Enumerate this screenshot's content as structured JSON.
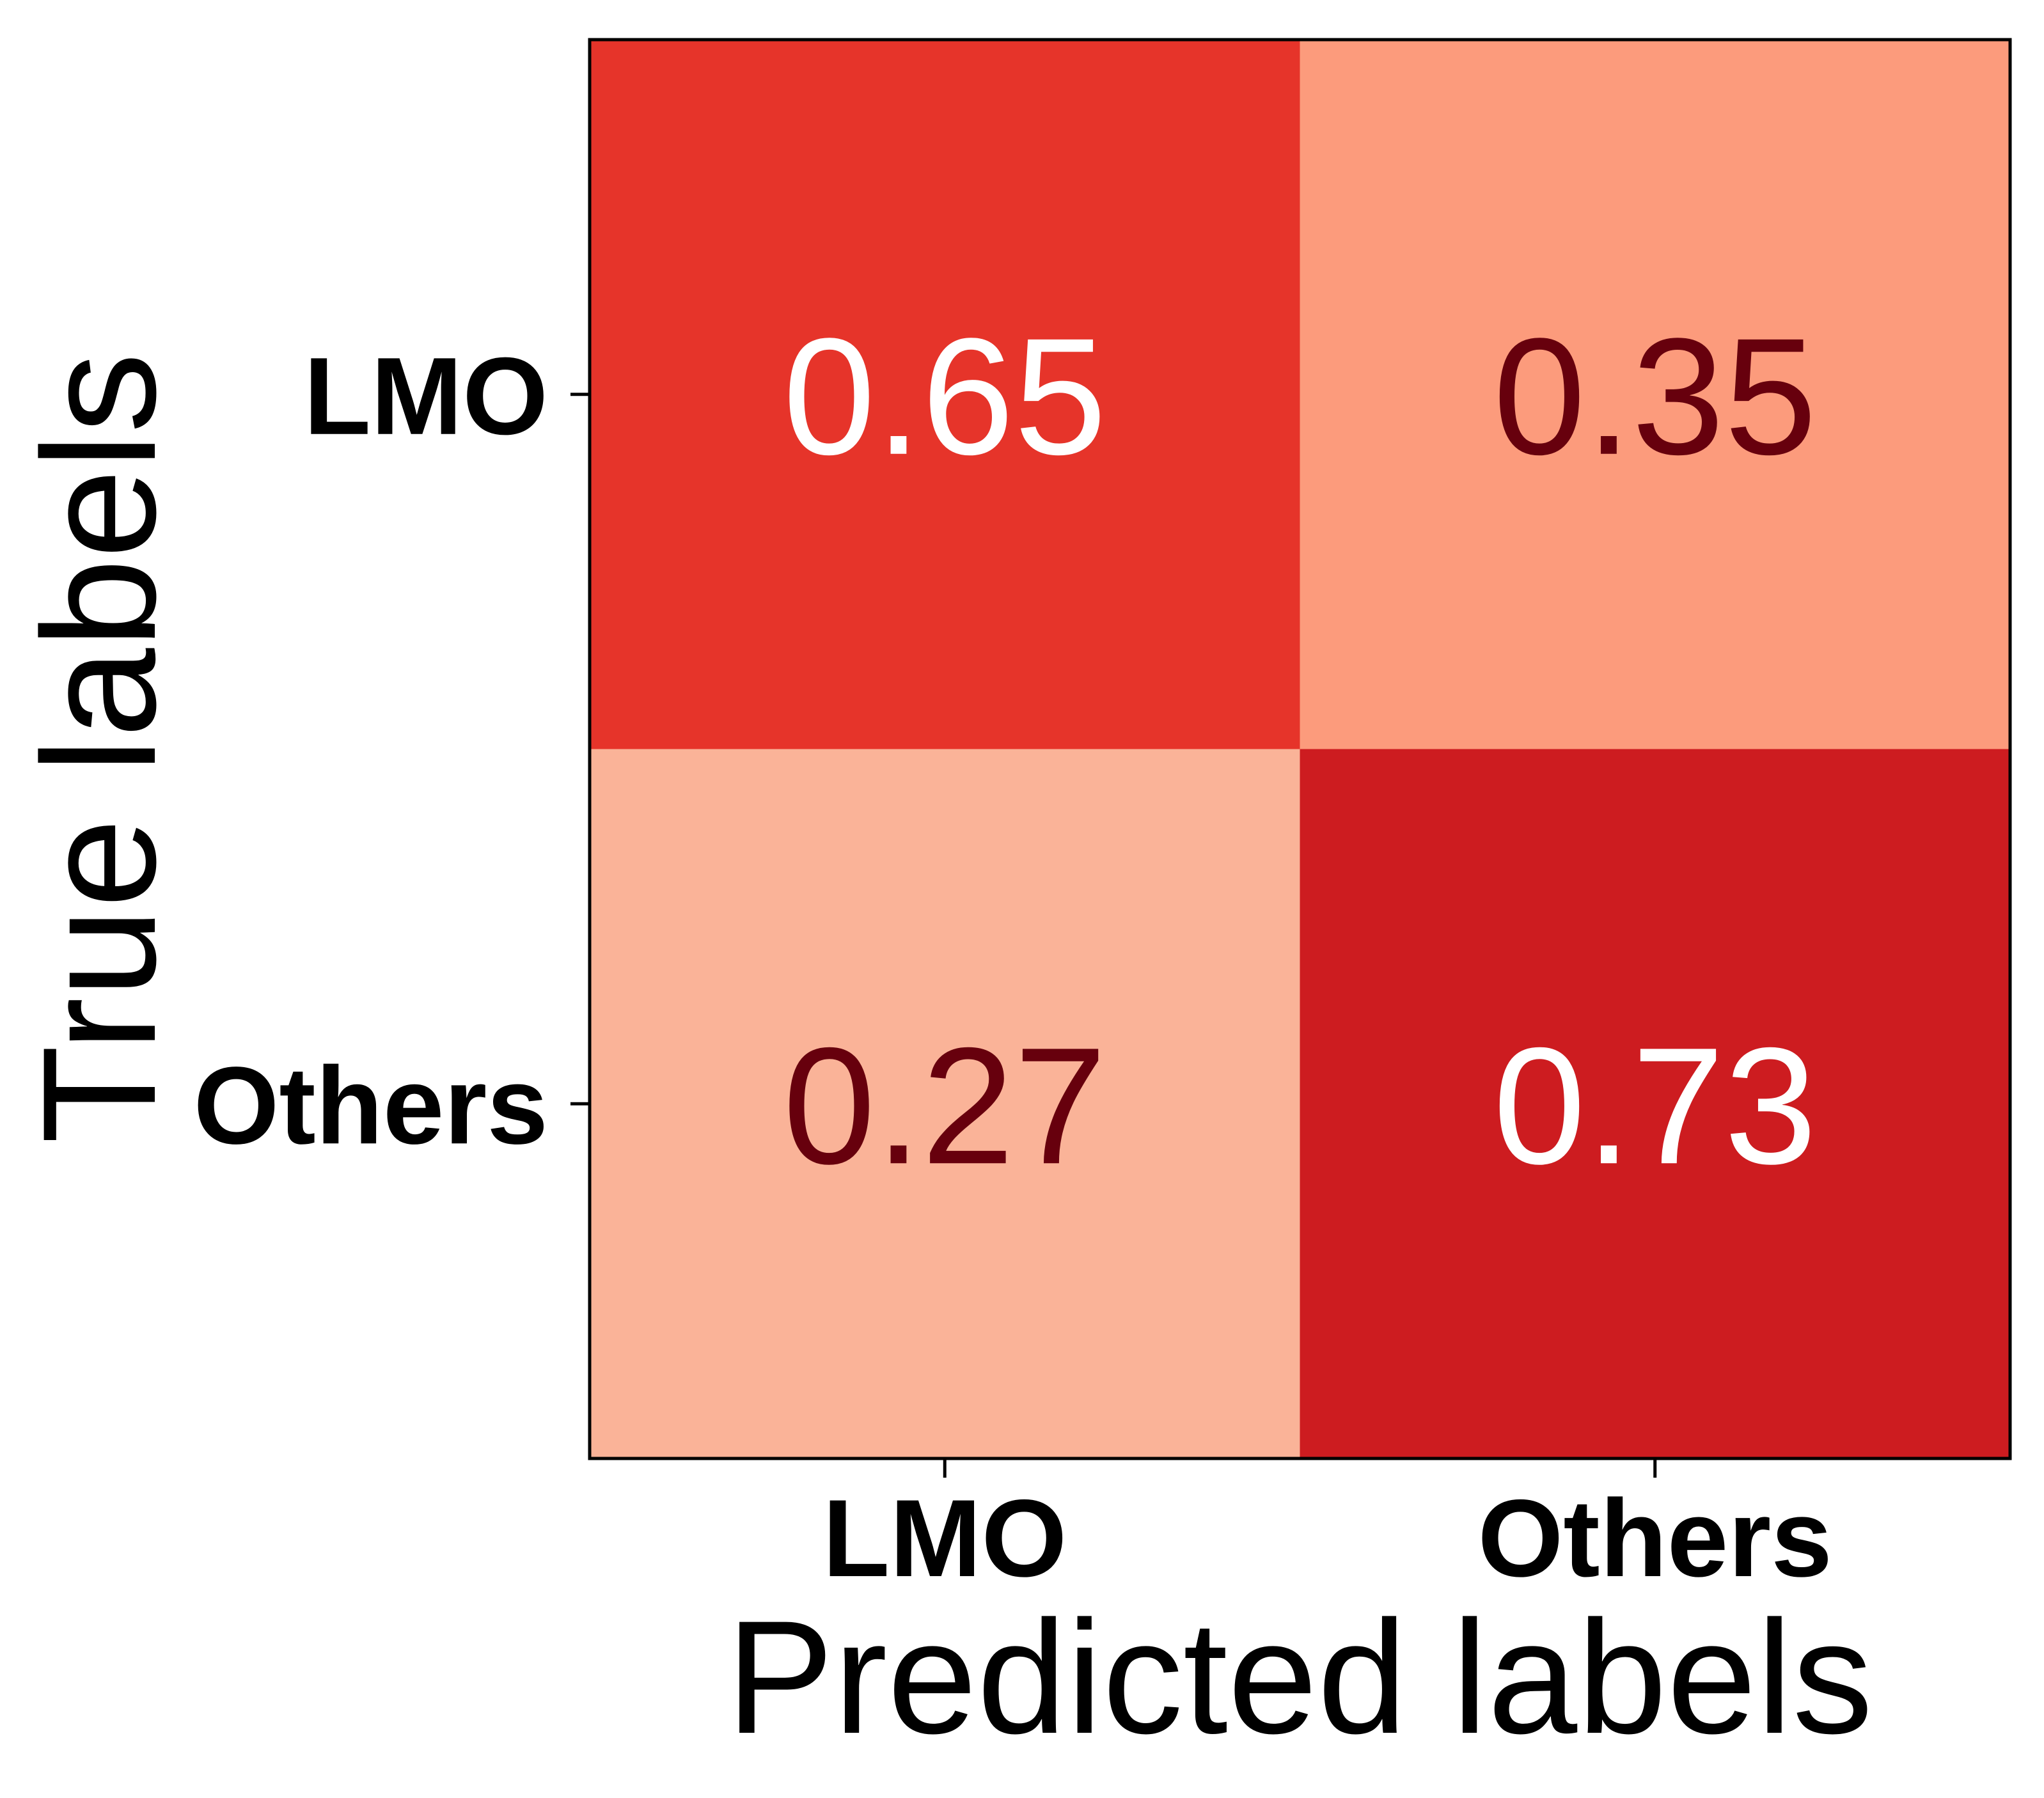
{
  "chart_data": {
    "type": "heatmap",
    "xlabel": "Predicted labels",
    "ylabel": "True labels",
    "x_categories": [
      "LMO",
      "Others"
    ],
    "y_categories": [
      "LMO",
      "Others"
    ],
    "values": [
      [
        0.65,
        0.35
      ],
      [
        0.27,
        0.73
      ]
    ],
    "colormap": "Reds",
    "cell_colors": [
      [
        "#e6342a",
        "#fc9b7c"
      ],
      [
        "#fab398",
        "#cd1c20"
      ]
    ],
    "text_colors": {
      "light": "#ffffff",
      "dark": "#67000d"
    },
    "colorbar": false,
    "grid": false
  }
}
